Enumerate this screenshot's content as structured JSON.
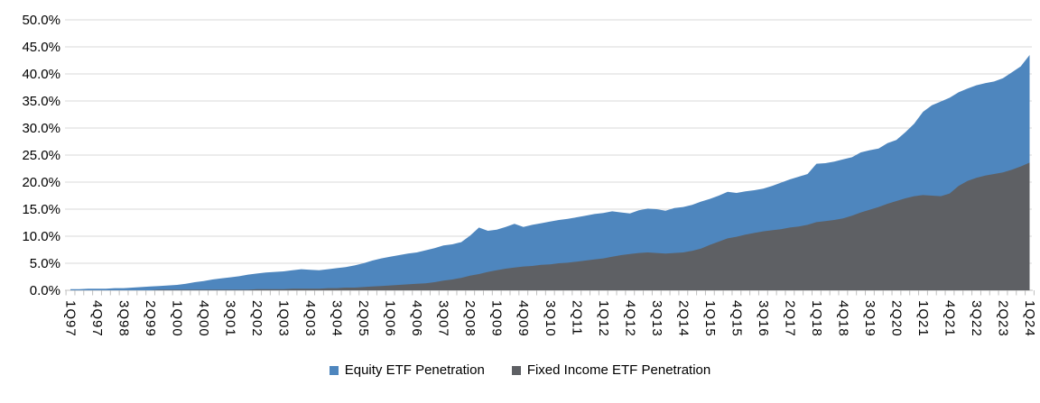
{
  "chart_data": {
    "type": "area",
    "title": "",
    "categories": [
      "1Q97",
      "2Q97",
      "3Q97",
      "4Q97",
      "1Q98",
      "2Q98",
      "3Q98",
      "4Q98",
      "1Q99",
      "2Q99",
      "3Q99",
      "4Q99",
      "1Q00",
      "2Q00",
      "3Q00",
      "4Q00",
      "1Q01",
      "2Q01",
      "3Q01",
      "4Q01",
      "1Q02",
      "2Q02",
      "3Q02",
      "4Q02",
      "1Q03",
      "2Q03",
      "3Q03",
      "4Q03",
      "1Q04",
      "2Q04",
      "3Q04",
      "4Q04",
      "1Q05",
      "2Q05",
      "3Q05",
      "4Q05",
      "1Q06",
      "2Q06",
      "3Q06",
      "4Q06",
      "1Q07",
      "2Q07",
      "3Q07",
      "4Q07",
      "1Q08",
      "2Q08",
      "3Q08",
      "4Q08",
      "1Q09",
      "2Q09",
      "3Q09",
      "4Q09",
      "1Q10",
      "2Q10",
      "3Q10",
      "4Q10",
      "1Q11",
      "2Q11",
      "3Q11",
      "4Q11",
      "1Q12",
      "2Q12",
      "3Q12",
      "4Q12",
      "1Q13",
      "2Q13",
      "3Q13",
      "4Q13",
      "1Q14",
      "2Q14",
      "3Q14",
      "4Q14",
      "1Q15",
      "2Q15",
      "3Q15",
      "4Q15",
      "1Q16",
      "2Q16",
      "3Q16",
      "4Q16",
      "1Q17",
      "2Q17",
      "3Q17",
      "4Q17",
      "1Q18",
      "2Q18",
      "3Q18",
      "4Q18",
      "1Q19",
      "2Q19",
      "3Q19",
      "4Q19",
      "1Q20",
      "2Q20",
      "3Q20",
      "4Q20",
      "1Q21",
      "2Q21",
      "3Q21",
      "4Q21",
      "1Q22",
      "2Q22",
      "3Q22",
      "4Q22",
      "1Q23",
      "2Q23",
      "3Q23",
      "4Q23",
      "1Q24"
    ],
    "label_every": 3,
    "series": [
      {
        "name": "Equity ETF Penetration",
        "color": "#4E86BE",
        "values": [
          0.2,
          0.2,
          0.3,
          0.3,
          0.3,
          0.4,
          0.4,
          0.5,
          0.6,
          0.7,
          0.8,
          0.9,
          1.0,
          1.2,
          1.5,
          1.7,
          2.0,
          2.2,
          2.4,
          2.6,
          2.9,
          3.1,
          3.3,
          3.4,
          3.5,
          3.7,
          3.9,
          3.8,
          3.7,
          3.9,
          4.1,
          4.3,
          4.6,
          5.0,
          5.5,
          5.9,
          6.2,
          6.5,
          6.8,
          7.0,
          7.4,
          7.8,
          8.3,
          8.5,
          8.9,
          10.1,
          11.6,
          11.0,
          11.2,
          11.7,
          12.3,
          11.7,
          12.1,
          12.4,
          12.7,
          13.0,
          13.2,
          13.5,
          13.8,
          14.1,
          14.3,
          14.6,
          14.4,
          14.2,
          14.8,
          15.1,
          15.0,
          14.7,
          15.2,
          15.4,
          15.8,
          16.4,
          16.9,
          17.5,
          18.2,
          18.0,
          18.3,
          18.5,
          18.8,
          19.3,
          19.9,
          20.5,
          21.0,
          21.5,
          23.4,
          23.5,
          23.8,
          24.2,
          24.6,
          25.5,
          25.9,
          26.2,
          27.2,
          27.8,
          29.2,
          30.8,
          33.0,
          34.2,
          34.9,
          35.6,
          36.6,
          37.3,
          37.9,
          38.3,
          38.6,
          39.2,
          40.3,
          41.4,
          43.5
        ]
      },
      {
        "name": "Fixed Income ETF Penetration",
        "color": "#5E6064",
        "values": [
          0.0,
          0.0,
          0.0,
          0.0,
          0.0,
          0.0,
          0.0,
          0.0,
          0.0,
          0.0,
          0.1,
          0.1,
          0.1,
          0.1,
          0.1,
          0.1,
          0.1,
          0.1,
          0.1,
          0.1,
          0.1,
          0.2,
          0.2,
          0.2,
          0.2,
          0.3,
          0.3,
          0.3,
          0.3,
          0.4,
          0.4,
          0.5,
          0.5,
          0.6,
          0.7,
          0.8,
          0.9,
          1.0,
          1.1,
          1.2,
          1.3,
          1.5,
          1.8,
          2.0,
          2.3,
          2.7,
          3.0,
          3.4,
          3.7,
          4.0,
          4.2,
          4.4,
          4.5,
          4.7,
          4.8,
          5.0,
          5.1,
          5.3,
          5.5,
          5.7,
          5.9,
          6.2,
          6.5,
          6.7,
          6.9,
          7.0,
          6.9,
          6.8,
          6.9,
          7.0,
          7.3,
          7.7,
          8.4,
          9.0,
          9.6,
          9.9,
          10.3,
          10.6,
          10.9,
          11.1,
          11.3,
          11.6,
          11.8,
          12.1,
          12.6,
          12.8,
          13.0,
          13.3,
          13.8,
          14.4,
          14.9,
          15.4,
          16.0,
          16.5,
          17.0,
          17.4,
          17.6,
          17.5,
          17.4,
          17.9,
          19.3,
          20.2,
          20.8,
          21.2,
          21.5,
          21.8,
          22.3,
          22.9,
          23.6
        ]
      }
    ],
    "y_axis": {
      "min": 0,
      "max": 50,
      "step": 5,
      "tick_labels": [
        "0.0%",
        "5.0%",
        "10.0%",
        "15.0%",
        "20.0%",
        "25.0%",
        "30.0%",
        "35.0%",
        "40.0%",
        "45.0%",
        "50.0%"
      ]
    },
    "grid": true,
    "legend_position": "bottom",
    "colors": {
      "gridline": "#D9D9D9",
      "axis": "#BFBFBF",
      "text": "#000000"
    }
  }
}
